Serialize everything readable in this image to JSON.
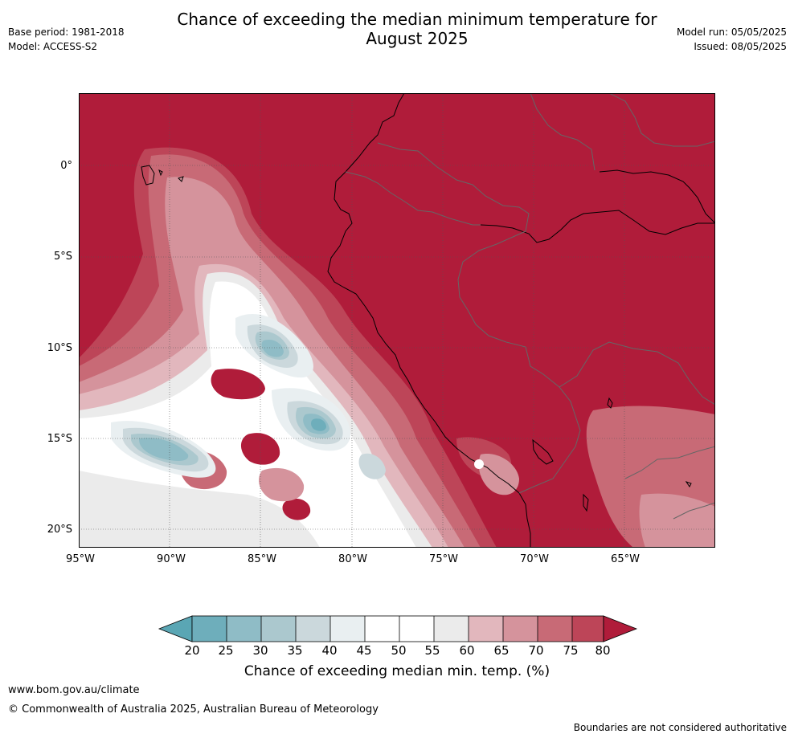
{
  "header": {
    "title_line1": "Chance of exceeding the median minimum temperature for",
    "title_line2": "August 2025",
    "base_period": "Base period: 1981-2018",
    "model": "Model: ACCESS-S2",
    "model_run": "Model run: 05/05/2025",
    "issued": "Issued: 08/05/2025"
  },
  "map": {
    "lat_labels": [
      "0°",
      "5°S",
      "10°S",
      "15°S",
      "20°S"
    ],
    "lon_labels": [
      "95°W",
      "90°W",
      "85°W",
      "80°W",
      "75°W",
      "70°W",
      "65°W"
    ],
    "colors": {
      "c20": "#5aa6b4",
      "c25": "#6eaebb",
      "c30": "#8fbcc6",
      "c35": "#abc8ce",
      "c40": "#cbd8dc",
      "c45": "#e9eff1",
      "c50": "#ffffff",
      "c55": "#ffffff",
      "c60": "#ebebeb",
      "c65": "#e2b7bd",
      "c70": "#d5939c",
      "c75": "#c86a76",
      "c80": "#bd4558",
      "c85": "#b01c3a"
    }
  },
  "colorbar": {
    "ticks": [
      "20",
      "25",
      "30",
      "35",
      "40",
      "45",
      "50",
      "55",
      "60",
      "65",
      "70",
      "75",
      "80"
    ],
    "label": "Chance of exceeding median min. temp. (%)"
  },
  "footer": {
    "website": "www.bom.gov.au/climate",
    "copyright": "© Commonwealth of Australia 2025, Australian Bureau of Meteorology",
    "disclaimer": "Boundaries are not considered authoritative"
  }
}
